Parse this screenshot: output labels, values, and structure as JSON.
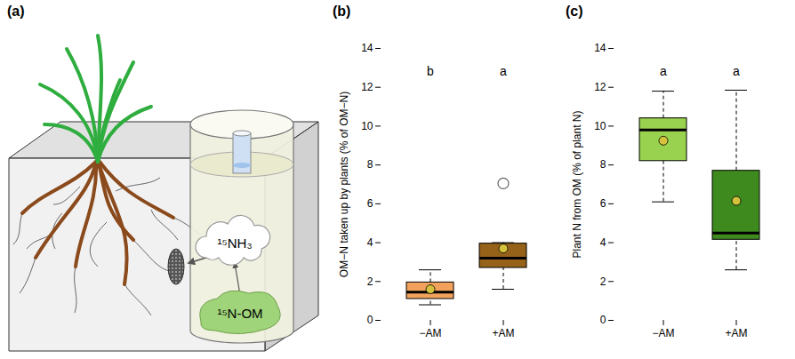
{
  "diagram": {
    "title": "(a)",
    "labels": [
      "¹⁵NH₃",
      "¹⁵N-OM"
    ]
  },
  "chart_data": [
    {
      "type": "box",
      "title": "(b)",
      "y_label": "OM−N taken up by plants (% of OM−N)",
      "categories": [
        "−AM",
        "+AM"
      ],
      "colors": [
        "#f2a25c",
        "#96621a"
      ],
      "boxes": [
        {
          "min": 0.8,
          "q1": 1.1,
          "median": 1.45,
          "q3": 1.95,
          "max": 2.6,
          "mean": 1.6,
          "outliers": []
        },
        {
          "min": 1.6,
          "q1": 2.7,
          "median": 3.2,
          "q3": 3.95,
          "max": 4.0,
          "mean": 3.7,
          "outliers": [
            7.05
          ]
        }
      ],
      "group_letters": [
        "b",
        "a"
      ],
      "ylim": [
        0,
        14
      ],
      "yticks": [
        0,
        2,
        4,
        6,
        8,
        10,
        12,
        14
      ]
    },
    {
      "type": "box",
      "title": "(c)",
      "y_label": "Plant N from OM (% of plant N)",
      "categories": [
        "−AM",
        "+AM"
      ],
      "colors": [
        "#98d24e",
        "#3e8a1f"
      ],
      "boxes": [
        {
          "min": 6.1,
          "q1": 8.2,
          "median": 9.8,
          "q3": 10.4,
          "max": 11.8,
          "mean": 9.25,
          "outliers": []
        },
        {
          "min": 2.6,
          "q1": 4.15,
          "median": 4.5,
          "q3": 7.7,
          "max": 11.85,
          "mean": 6.15,
          "outliers": []
        }
      ],
      "group_letters": [
        "a",
        "a"
      ],
      "ylim": [
        0,
        14
      ],
      "yticks": [
        0,
        2,
        4,
        6,
        8,
        10,
        12,
        14
      ]
    }
  ]
}
